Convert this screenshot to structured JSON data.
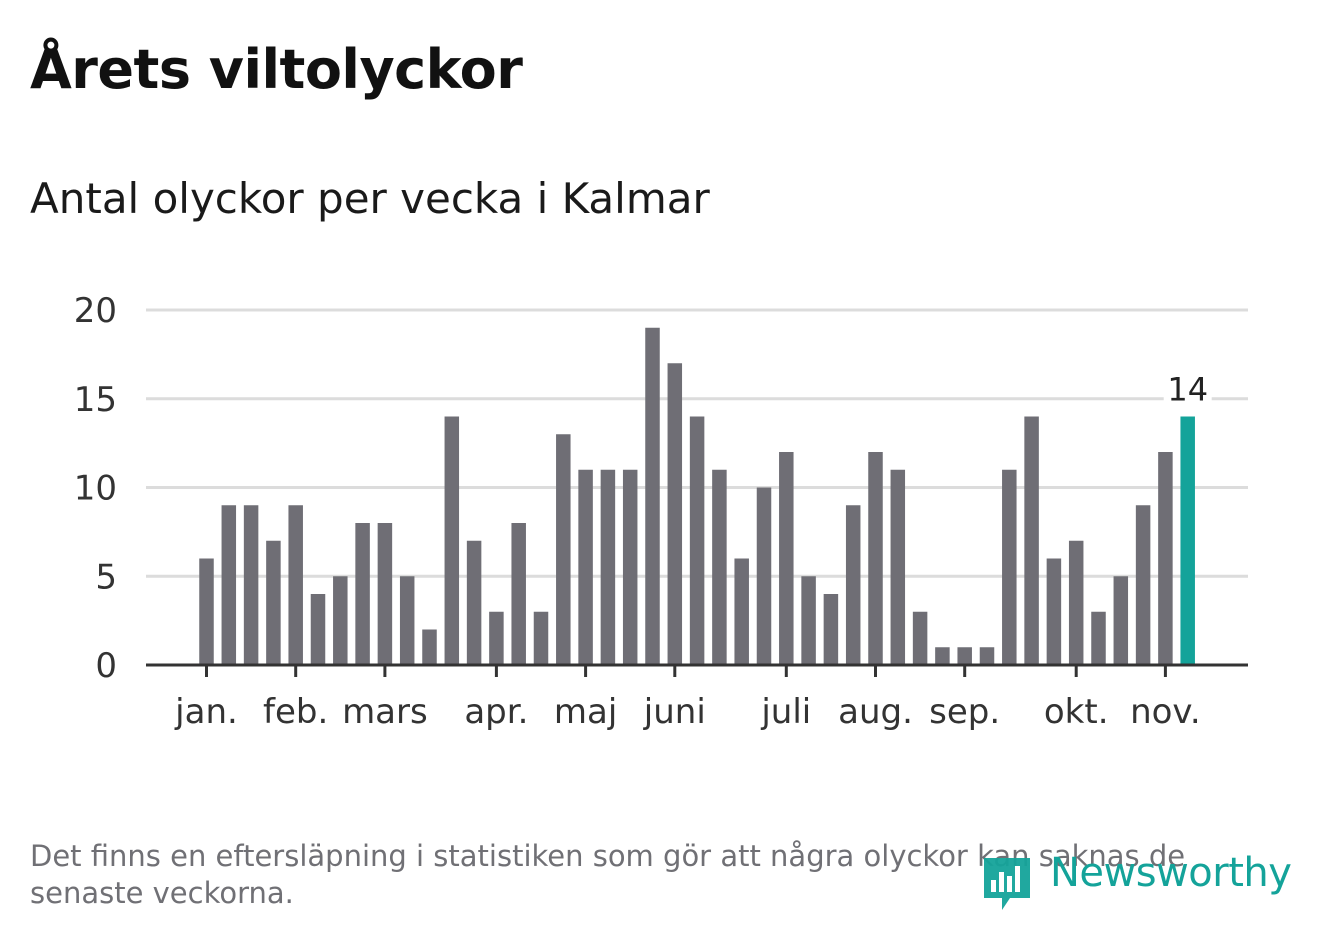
{
  "header": {
    "title": "Årets viltolyckor",
    "subtitle": "Antal olyckor per vecka i Kalmar"
  },
  "footer": {
    "note": "Det finns en eftersläpning i statistiken som gör att några olyckor kan saknas de senaste veckorna.",
    "logo_text": "Newsworthy"
  },
  "colors": {
    "bar": "#6f6e75",
    "highlight": "#14a39a",
    "grid": "#dcdcdc",
    "axis": "#333333"
  },
  "chart_data": {
    "type": "bar",
    "title": "Antal olyckor per vecka i Kalmar",
    "xlabel": "",
    "ylabel": "",
    "ylim": [
      0,
      20
    ],
    "yticks": [
      0,
      5,
      10,
      15,
      20
    ],
    "grid": true,
    "values": [
      6,
      9,
      9,
      7,
      9,
      4,
      5,
      8,
      8,
      5,
      2,
      14,
      7,
      3,
      8,
      3,
      13,
      11,
      11,
      11,
      19,
      17,
      14,
      11,
      6,
      10,
      12,
      5,
      4,
      9,
      12,
      11,
      3,
      1,
      1,
      1,
      11,
      14,
      6,
      7,
      3,
      5,
      9,
      12,
      14
    ],
    "highlight_index": 44,
    "highlight_label": "14",
    "month_ticks": [
      {
        "label": "jan.",
        "bar": 0
      },
      {
        "label": "feb.",
        "bar": 4
      },
      {
        "label": "mars",
        "bar": 8
      },
      {
        "label": "apr.",
        "bar": 13
      },
      {
        "label": "maj",
        "bar": 17
      },
      {
        "label": "juni",
        "bar": 21
      },
      {
        "label": "juli",
        "bar": 26
      },
      {
        "label": "aug.",
        "bar": 30
      },
      {
        "label": "sep.",
        "bar": 34
      },
      {
        "label": "okt.",
        "bar": 39
      },
      {
        "label": "nov.",
        "bar": 43
      }
    ]
  }
}
